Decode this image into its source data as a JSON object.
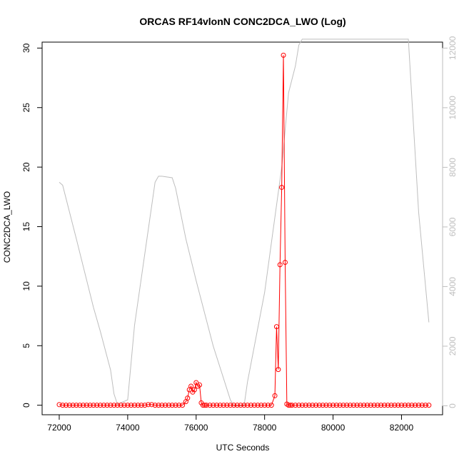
{
  "chart_data": {
    "type": "line",
    "title": "ORCAS RF14vlonN CONC2DCA_LWO (Log)",
    "xlabel": "UTC Seconds",
    "ylabel": "CONC2DCA_LWO",
    "xlim": [
      71500,
      83200
    ],
    "ylim": [
      -0.8,
      30.5
    ],
    "ylim_right": [
      -300,
      12200
    ],
    "x_ticks": [
      72000,
      74000,
      76000,
      78000,
      80000,
      82000
    ],
    "y_ticks": [
      0,
      5,
      10,
      15,
      20,
      25,
      30
    ],
    "y_ticks_right": [
      0,
      2000,
      4000,
      6000,
      8000,
      10000,
      12000
    ],
    "grid": false,
    "series": [
      {
        "axis": "left",
        "color": "#ff0000",
        "marker": "open-circle",
        "x": [
          72000,
          72100,
          72200,
          72300,
          72400,
          72500,
          72600,
          72700,
          72800,
          72900,
          73000,
          73100,
          73200,
          73300,
          73400,
          73500,
          73600,
          73700,
          73800,
          73900,
          74000,
          74100,
          74200,
          74300,
          74400,
          74500,
          74600,
          74700,
          74800,
          74900,
          75000,
          75100,
          75200,
          75300,
          75400,
          75500,
          75600,
          75700,
          75750,
          75800,
          75850,
          75900,
          75950,
          76000,
          76050,
          76100,
          76150,
          76200,
          76250,
          76300,
          76400,
          76500,
          76600,
          76700,
          76800,
          76900,
          77000,
          77100,
          77200,
          77300,
          77400,
          77500,
          77600,
          77700,
          77800,
          77900,
          78000,
          78100,
          78200,
          78300,
          78350,
          78400,
          78450,
          78500,
          78550,
          78600,
          78650,
          78700,
          78750,
          78800,
          78900,
          79000,
          79100,
          79200,
          79300,
          79400,
          79500,
          79600,
          79700,
          79800,
          79900,
          80000,
          80100,
          80200,
          80300,
          80400,
          80500,
          80600,
          80700,
          80800,
          80900,
          81000,
          81100,
          81200,
          81300,
          81400,
          81500,
          81600,
          81700,
          81800,
          81900,
          82000,
          82100,
          82200,
          82300,
          82400,
          82500,
          82600,
          82700,
          82800
        ],
        "y": [
          0.05,
          0,
          0,
          0,
          0,
          0,
          0,
          0,
          0,
          0,
          0,
          0,
          0,
          0,
          0,
          0,
          0,
          0,
          0,
          0,
          0,
          0,
          0,
          0,
          0,
          0,
          0.05,
          0.05,
          0,
          0,
          0,
          0,
          0,
          0,
          0,
          0,
          0,
          0.3,
          0.6,
          1.3,
          1.6,
          1.1,
          1.3,
          1.9,
          1.6,
          1.7,
          0.2,
          0,
          0,
          0,
          0,
          0,
          0,
          0,
          0,
          0,
          0,
          0,
          0,
          0,
          0,
          0,
          0,
          0,
          0,
          0,
          0,
          0,
          0,
          0.8,
          6.6,
          3.0,
          11.8,
          18.3,
          29.4,
          12.0,
          0.1,
          0,
          0,
          0,
          0,
          0,
          0,
          0,
          0,
          0,
          0,
          0,
          0,
          0,
          0,
          0,
          0,
          0,
          0,
          0,
          0,
          0,
          0,
          0,
          0,
          0,
          0,
          0,
          0,
          0,
          0,
          0,
          0,
          0,
          0,
          0,
          0,
          0,
          0,
          0,
          0,
          0,
          0,
          0
        ]
      },
      {
        "axis": "right",
        "color": "#bebebe",
        "marker": "none",
        "x": [
          72000,
          72100,
          72500,
          73000,
          73200,
          73500,
          73600,
          73700,
          74000,
          74200,
          74500,
          74800,
          74900,
          75000,
          75300,
          75400,
          75700,
          76000,
          76500,
          77000,
          77100,
          77400,
          77500,
          78000,
          78500,
          78700,
          78900,
          79000,
          79100,
          79200,
          80000,
          81000,
          82000,
          82200,
          82500,
          82800
        ],
        "y": [
          7500,
          7400,
          5600,
          3300,
          2500,
          1200,
          400,
          50,
          200,
          2700,
          5100,
          7500,
          7700,
          7700,
          7650,
          7300,
          5600,
          4200,
          2000,
          200,
          0,
          0,
          800,
          3800,
          8000,
          10500,
          11400,
          12100,
          12300,
          12300,
          12300,
          12300,
          12300,
          12300,
          6500,
          2800
        ]
      }
    ]
  }
}
